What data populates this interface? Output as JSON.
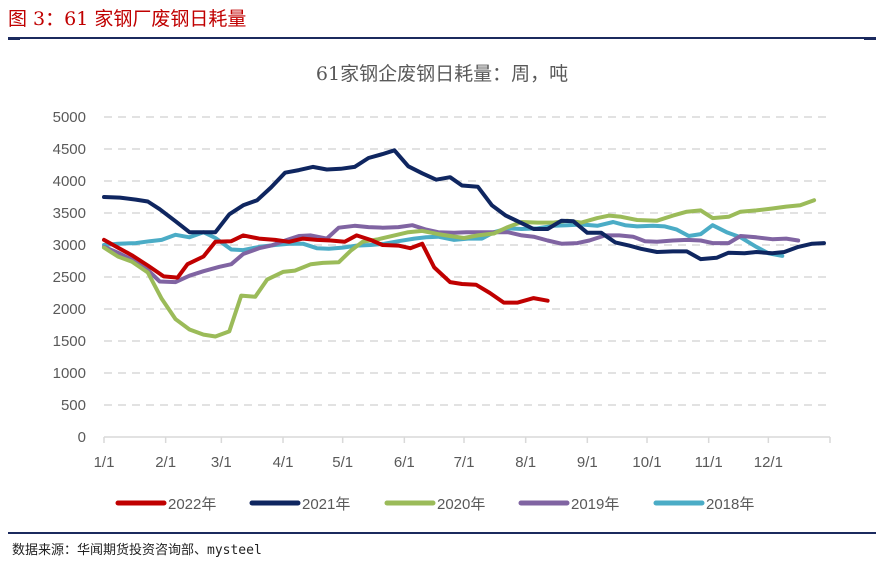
{
  "header": {
    "figure_title": "图 3：61 家钢厂废钢日耗量"
  },
  "footer": {
    "source": "数据来源：华闻期货投资咨询部、mysteel"
  },
  "chart_data": {
    "type": "line",
    "title": "61家钢企废钢日耗量：周，吨",
    "xlabel": "",
    "ylabel": "",
    "x_unit": "day of year",
    "xlim": [
      0,
      365
    ],
    "ylim": [
      0,
      5000
    ],
    "y_ticks": [
      0,
      500,
      1000,
      1500,
      2000,
      2500,
      3000,
      3500,
      4000,
      4500,
      5000
    ],
    "x_tick_days": [
      0,
      31,
      59,
      90,
      120,
      151,
      181,
      212,
      243,
      273,
      304,
      334
    ],
    "x_tick_labels": [
      "1/1",
      "2/1",
      "3/1",
      "4/1",
      "5/1",
      "6/1",
      "7/1",
      "8/1",
      "9/1",
      "10/1",
      "11/1",
      "12/1"
    ],
    "grid": "horizontal dashed",
    "legend_position": "bottom",
    "series": [
      {
        "name": "2022年",
        "color": "#c00000",
        "x": [
          0,
          7,
          14,
          22,
          30,
          37,
          42,
          50,
          56,
          64,
          70,
          78,
          86,
          93,
          100,
          107,
          114,
          121,
          127,
          134,
          140,
          148,
          154,
          160,
          166,
          174,
          180,
          187,
          194,
          201,
          208,
          216,
          223
        ],
        "values": [
          3080,
          2960,
          2840,
          2680,
          2510,
          2490,
          2700,
          2820,
          3050,
          3060,
          3150,
          3100,
          3080,
          3050,
          3100,
          3080,
          3070,
          3050,
          3150,
          3080,
          3000,
          2990,
          2950,
          3020,
          2650,
          2420,
          2390,
          2380,
          2250,
          2100,
          2100,
          2170,
          2130
        ]
      },
      {
        "name": "2021年",
        "color": "#0f2660",
        "x": [
          0,
          8,
          16,
          22,
          28,
          36,
          43,
          50,
          56,
          63,
          70,
          77,
          84,
          91,
          98,
          105,
          112,
          119,
          126,
          133,
          140,
          146,
          153,
          160,
          167,
          174,
          180,
          188,
          195,
          202,
          210,
          216,
          223,
          230,
          236,
          243,
          250,
          257,
          264,
          270,
          278,
          286,
          293,
          300,
          308,
          314,
          322,
          328,
          336,
          342,
          349,
          356,
          362
        ],
        "values": [
          3750,
          3740,
          3710,
          3680,
          3560,
          3370,
          3200,
          3200,
          3200,
          3480,
          3620,
          3700,
          3900,
          4130,
          4170,
          4220,
          4180,
          4190,
          4220,
          4360,
          4420,
          4480,
          4230,
          4120,
          4020,
          4060,
          3930,
          3910,
          3620,
          3460,
          3340,
          3250,
          3250,
          3380,
          3370,
          3190,
          3190,
          3040,
          2990,
          2940,
          2890,
          2900,
          2900,
          2780,
          2800,
          2880,
          2870,
          2890,
          2870,
          2890,
          2970,
          3020,
          3030
        ]
      },
      {
        "name": "2020年",
        "color": "#9bbb59",
        "x": [
          0,
          7,
          14,
          22,
          29,
          36,
          43,
          50,
          56,
          63,
          69,
          76,
          82,
          90,
          96,
          104,
          110,
          118,
          124,
          130,
          138,
          146,
          153,
          160,
          168,
          174,
          181,
          188,
          196,
          203,
          210,
          218,
          226,
          233,
          240,
          248,
          254,
          260,
          268,
          278,
          286,
          293,
          300,
          306,
          314,
          320,
          328,
          336,
          343,
          350,
          357
        ],
        "values": [
          2960,
          2820,
          2740,
          2570,
          2160,
          1840,
          1680,
          1600,
          1570,
          1650,
          2210,
          2190,
          2460,
          2580,
          2600,
          2700,
          2720,
          2730,
          2910,
          3050,
          3090,
          3150,
          3200,
          3220,
          3170,
          3140,
          3110,
          3150,
          3180,
          3280,
          3360,
          3350,
          3350,
          3380,
          3350,
          3420,
          3460,
          3440,
          3390,
          3380,
          3460,
          3520,
          3540,
          3420,
          3440,
          3520,
          3540,
          3570,
          3600,
          3620,
          3700
        ]
      },
      {
        "name": "2019年",
        "color": "#8064a2",
        "x": [
          0,
          7,
          14,
          22,
          28,
          36,
          43,
          50,
          58,
          64,
          70,
          78,
          84,
          92,
          98,
          104,
          112,
          118,
          126,
          133,
          140,
          148,
          155,
          162,
          168,
          176,
          182,
          190,
          196,
          203,
          210,
          216,
          223,
          230,
          238,
          244,
          252,
          259,
          266,
          272,
          278,
          286,
          293,
          300,
          306,
          314,
          320,
          328,
          336,
          343,
          349
        ],
        "values": [
          2970,
          2880,
          2770,
          2610,
          2430,
          2420,
          2520,
          2590,
          2660,
          2700,
          2860,
          2950,
          2990,
          3080,
          3140,
          3150,
          3100,
          3270,
          3300,
          3280,
          3270,
          3280,
          3310,
          3240,
          3200,
          3190,
          3200,
          3200,
          3200,
          3200,
          3150,
          3130,
          3070,
          3020,
          3030,
          3070,
          3150,
          3150,
          3130,
          3060,
          3050,
          3070,
          3080,
          3070,
          3030,
          3030,
          3140,
          3120,
          3090,
          3100,
          3070
        ]
      },
      {
        "name": "2018年",
        "color": "#4bacc6",
        "x": [
          0,
          7,
          16,
          23,
          29,
          36,
          43,
          50,
          56,
          64,
          70,
          78,
          86,
          93,
          100,
          107,
          113,
          120,
          127,
          134,
          141,
          148,
          156,
          162,
          168,
          176,
          183,
          190,
          196,
          203,
          210,
          218,
          226,
          233,
          240,
          248,
          256,
          262,
          268,
          276,
          282,
          288,
          294,
          300,
          306,
          313,
          320,
          328,
          334,
          341
        ],
        "values": [
          3000,
          3020,
          3030,
          3060,
          3080,
          3160,
          3120,
          3200,
          3110,
          2930,
          2920,
          2970,
          3000,
          3020,
          3020,
          2950,
          2940,
          2960,
          2990,
          3000,
          3020,
          3060,
          3100,
          3120,
          3130,
          3080,
          3100,
          3100,
          3200,
          3260,
          3250,
          3260,
          3300,
          3310,
          3320,
          3300,
          3360,
          3310,
          3290,
          3300,
          3290,
          3240,
          3140,
          3170,
          3310,
          3200,
          3120,
          2970,
          2870,
          2830
        ]
      }
    ]
  }
}
